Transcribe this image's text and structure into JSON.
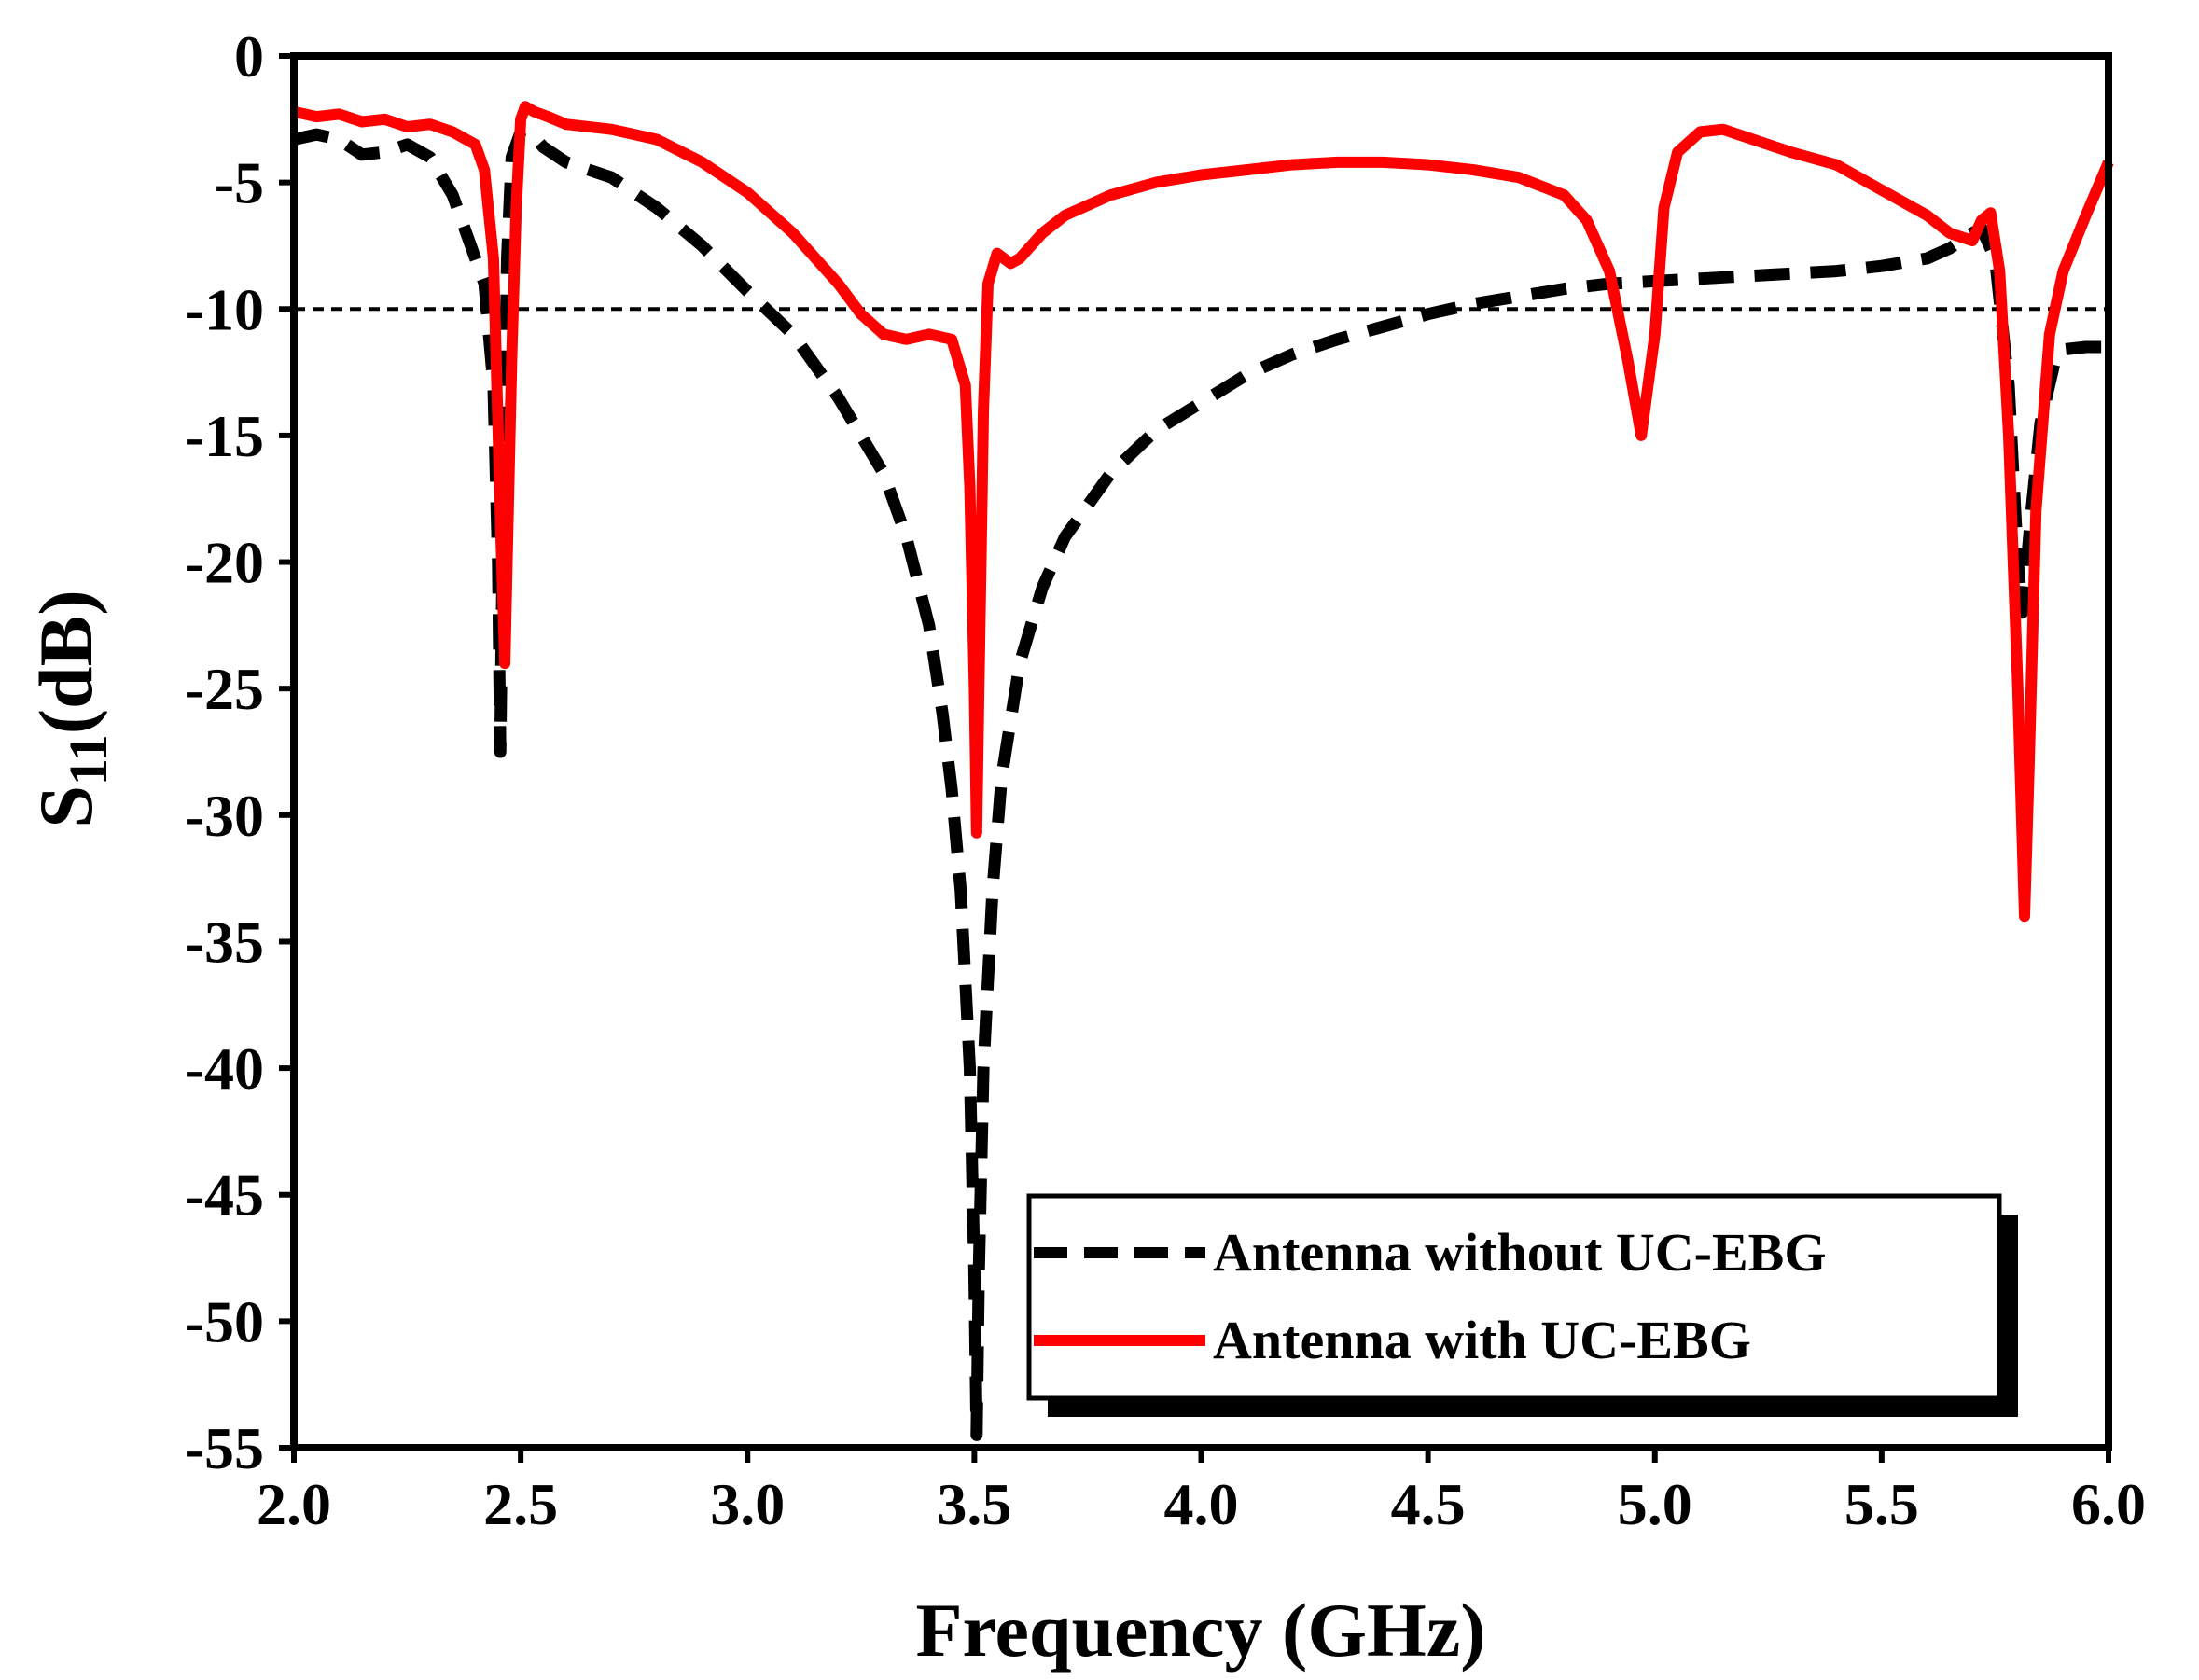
{
  "chart_data": {
    "type": "line",
    "xlabel": "Frequency (GHz)",
    "ylabel_main": "S",
    "ylabel_sub": "11",
    "ylabel_unit": "(dB)",
    "xlim": [
      2.0,
      6.0
    ],
    "ylim": [
      -55,
      0
    ],
    "xticks": [
      2.0,
      2.5,
      3.0,
      3.5,
      4.0,
      4.5,
      5.0,
      5.5,
      6.0
    ],
    "xtick_labels": [
      "2.0",
      "2.5",
      "3.0",
      "3.5",
      "4.0",
      "4.5",
      "5.0",
      "5.5",
      "6.0"
    ],
    "yticks": [
      0,
      -5,
      -10,
      -15,
      -20,
      -25,
      -30,
      -35,
      -40,
      -45,
      -50,
      -55
    ],
    "ytick_labels": [
      "0",
      "-5",
      "-10",
      "-15",
      "-20",
      "-25",
      "-30",
      "-35",
      "-40",
      "-45",
      "-50",
      "-55"
    ],
    "reference_line": -10,
    "legend_position": "bottom-right",
    "series": [
      {
        "name": "Antenna without UC-EBG",
        "color": "#000000",
        "style": "dashed",
        "points": [
          [
            2.0,
            -3.3
          ],
          [
            2.05,
            -3.1
          ],
          [
            2.1,
            -3.3
          ],
          [
            2.15,
            -3.9
          ],
          [
            2.2,
            -3.8
          ],
          [
            2.25,
            -3.5
          ],
          [
            2.3,
            -4.0
          ],
          [
            2.35,
            -5.5
          ],
          [
            2.38,
            -7.0
          ],
          [
            2.42,
            -9.0
          ],
          [
            2.44,
            -13
          ],
          [
            2.45,
            -20
          ],
          [
            2.455,
            -27.5
          ],
          [
            2.46,
            -20
          ],
          [
            2.47,
            -8
          ],
          [
            2.48,
            -4
          ],
          [
            2.5,
            -3.0
          ],
          [
            2.52,
            -3.0
          ],
          [
            2.55,
            -3.6
          ],
          [
            2.6,
            -4.2
          ],
          [
            2.7,
            -4.8
          ],
          [
            2.8,
            -6.0
          ],
          [
            2.9,
            -7.5
          ],
          [
            3.0,
            -9.3
          ],
          [
            3.1,
            -11.0
          ],
          [
            3.2,
            -13.5
          ],
          [
            3.3,
            -16.5
          ],
          [
            3.35,
            -19.0
          ],
          [
            3.4,
            -22.5
          ],
          [
            3.43,
            -26.0
          ],
          [
            3.45,
            -29.0
          ],
          [
            3.47,
            -33.0
          ],
          [
            3.49,
            -40.0
          ],
          [
            3.5,
            -48.0
          ],
          [
            3.505,
            -54.5
          ],
          [
            3.51,
            -48.0
          ],
          [
            3.52,
            -40.0
          ],
          [
            3.54,
            -33.0
          ],
          [
            3.56,
            -28.5
          ],
          [
            3.6,
            -24.0
          ],
          [
            3.65,
            -21.0
          ],
          [
            3.7,
            -19.0
          ],
          [
            3.8,
            -16.5
          ],
          [
            3.9,
            -14.8
          ],
          [
            4.0,
            -13.7
          ],
          [
            4.1,
            -12.6
          ],
          [
            4.2,
            -11.8
          ],
          [
            4.3,
            -11.2
          ],
          [
            4.4,
            -10.7
          ],
          [
            4.5,
            -10.2
          ],
          [
            4.6,
            -9.8
          ],
          [
            4.7,
            -9.5
          ],
          [
            4.8,
            -9.2
          ],
          [
            4.9,
            -9.0
          ],
          [
            5.0,
            -8.9
          ],
          [
            5.1,
            -8.8
          ],
          [
            5.2,
            -8.7
          ],
          [
            5.3,
            -8.6
          ],
          [
            5.4,
            -8.5
          ],
          [
            5.5,
            -8.3
          ],
          [
            5.6,
            -8.0
          ],
          [
            5.65,
            -7.6
          ],
          [
            5.7,
            -7.0
          ],
          [
            5.72,
            -6.8
          ],
          [
            5.75,
            -8.0
          ],
          [
            5.78,
            -13.0
          ],
          [
            5.8,
            -20.0
          ],
          [
            5.81,
            -22.0
          ],
          [
            5.83,
            -18.0
          ],
          [
            5.85,
            -14.5
          ],
          [
            5.88,
            -12.2
          ],
          [
            5.9,
            -11.6
          ],
          [
            5.95,
            -11.5
          ],
          [
            6.0,
            -11.5
          ]
        ]
      },
      {
        "name": "Antenna with UC-EBG",
        "color": "#ff0000",
        "style": "solid",
        "points": [
          [
            2.0,
            -2.2
          ],
          [
            2.05,
            -2.4
          ],
          [
            2.1,
            -2.3
          ],
          [
            2.15,
            -2.6
          ],
          [
            2.2,
            -2.5
          ],
          [
            2.25,
            -2.8
          ],
          [
            2.3,
            -2.7
          ],
          [
            2.35,
            -3.0
          ],
          [
            2.4,
            -3.5
          ],
          [
            2.42,
            -4.5
          ],
          [
            2.44,
            -8.0
          ],
          [
            2.455,
            -18.0
          ],
          [
            2.465,
            -24.0
          ],
          [
            2.47,
            -20.0
          ],
          [
            2.48,
            -12.0
          ],
          [
            2.49,
            -6.0
          ],
          [
            2.5,
            -2.5
          ],
          [
            2.51,
            -2.0
          ],
          [
            2.53,
            -2.2
          ],
          [
            2.56,
            -2.4
          ],
          [
            2.6,
            -2.7
          ],
          [
            2.7,
            -2.9
          ],
          [
            2.8,
            -3.3
          ],
          [
            2.9,
            -4.2
          ],
          [
            3.0,
            -5.4
          ],
          [
            3.1,
            -7.0
          ],
          [
            3.2,
            -9.0
          ],
          [
            3.25,
            -10.2
          ],
          [
            3.3,
            -11.0
          ],
          [
            3.35,
            -11.2
          ],
          [
            3.4,
            -11.0
          ],
          [
            3.45,
            -11.2
          ],
          [
            3.48,
            -13.0
          ],
          [
            3.49,
            -17.0
          ],
          [
            3.5,
            -25.0
          ],
          [
            3.505,
            -30.7
          ],
          [
            3.51,
            -25.0
          ],
          [
            3.52,
            -14.0
          ],
          [
            3.53,
            -9.0
          ],
          [
            3.55,
            -7.8
          ],
          [
            3.58,
            -8.2
          ],
          [
            3.6,
            -8.0
          ],
          [
            3.65,
            -7.0
          ],
          [
            3.7,
            -6.3
          ],
          [
            3.8,
            -5.5
          ],
          [
            3.9,
            -5.0
          ],
          [
            4.0,
            -4.7
          ],
          [
            4.1,
            -4.5
          ],
          [
            4.2,
            -4.3
          ],
          [
            4.3,
            -4.2
          ],
          [
            4.4,
            -4.2
          ],
          [
            4.5,
            -4.3
          ],
          [
            4.6,
            -4.5
          ],
          [
            4.7,
            -4.8
          ],
          [
            4.8,
            -5.5
          ],
          [
            4.85,
            -6.5
          ],
          [
            4.9,
            -8.5
          ],
          [
            4.94,
            -12.0
          ],
          [
            4.97,
            -15.0
          ],
          [
            5.0,
            -11.0
          ],
          [
            5.02,
            -6.0
          ],
          [
            5.05,
            -3.8
          ],
          [
            5.1,
            -3.0
          ],
          [
            5.15,
            -2.9
          ],
          [
            5.2,
            -3.2
          ],
          [
            5.3,
            -3.8
          ],
          [
            5.4,
            -4.3
          ],
          [
            5.5,
            -5.3
          ],
          [
            5.6,
            -6.3
          ],
          [
            5.65,
            -7.0
          ],
          [
            5.7,
            -7.3
          ],
          [
            5.72,
            -6.5
          ],
          [
            5.74,
            -6.2
          ],
          [
            5.76,
            -8.5
          ],
          [
            5.78,
            -15.0
          ],
          [
            5.8,
            -25.0
          ],
          [
            5.815,
            -34.0
          ],
          [
            5.825,
            -28.0
          ],
          [
            5.84,
            -18.0
          ],
          [
            5.87,
            -11.0
          ],
          [
            5.9,
            -8.5
          ],
          [
            5.95,
            -6.3
          ],
          [
            6.0,
            -4.2
          ]
        ]
      }
    ]
  }
}
